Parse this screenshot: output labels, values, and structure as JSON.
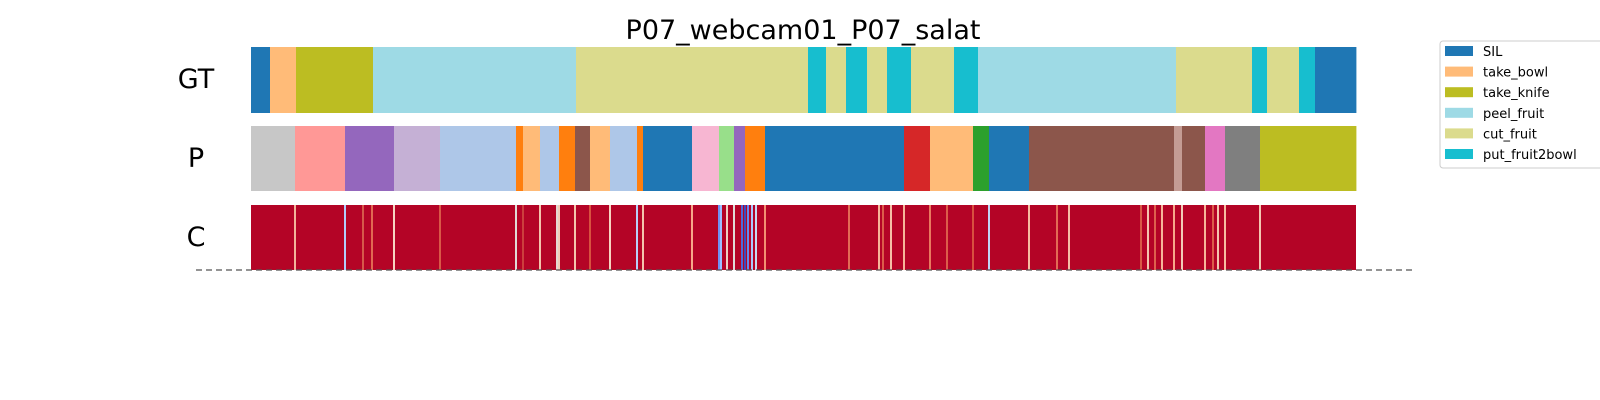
{
  "chart_data": {
    "type": "heatmap",
    "title": "P07_webcam01_P07_salat",
    "row_labels": [
      "GT",
      "P",
      "C"
    ],
    "x_range": [
      0,
      1105
    ],
    "legend": {
      "placement": "top-right",
      "entries": [
        {
          "label": "SIL",
          "color": "#1f77b4"
        },
        {
          "label": "take_bowl",
          "color": "#ffbb78"
        },
        {
          "label": "take_knife",
          "color": "#bcbd22"
        },
        {
          "label": "peel_fruit",
          "color": "#9edae5"
        },
        {
          "label": "cut_fruit",
          "color": "#dbdb8d"
        },
        {
          "label": "put_fruit2bowl",
          "color": "#17becf"
        }
      ]
    },
    "gt_segments": [
      {
        "start": 0,
        "end": 19,
        "color": "#1f77b4"
      },
      {
        "start": 19,
        "end": 45,
        "color": "#ffbb78"
      },
      {
        "start": 45,
        "end": 122,
        "color": "#bcbd22"
      },
      {
        "start": 122,
        "end": 325,
        "color": "#9edae5"
      },
      {
        "start": 325,
        "end": 557,
        "color": "#dbdb8d"
      },
      {
        "start": 557,
        "end": 575,
        "color": "#17becf"
      },
      {
        "start": 575,
        "end": 595,
        "color": "#dbdb8d"
      },
      {
        "start": 595,
        "end": 616,
        "color": "#17becf"
      },
      {
        "start": 616,
        "end": 636,
        "color": "#dbdb8d"
      },
      {
        "start": 636,
        "end": 660,
        "color": "#17becf"
      },
      {
        "start": 660,
        "end": 703,
        "color": "#dbdb8d"
      },
      {
        "start": 703,
        "end": 727,
        "color": "#17becf"
      },
      {
        "start": 727,
        "end": 925,
        "color": "#9edae5"
      },
      {
        "start": 925,
        "end": 1001,
        "color": "#dbdb8d"
      },
      {
        "start": 1001,
        "end": 1016,
        "color": "#17becf"
      },
      {
        "start": 1016,
        "end": 1048,
        "color": "#dbdb8d"
      },
      {
        "start": 1048,
        "end": 1064,
        "color": "#17becf"
      },
      {
        "start": 1064,
        "end": 1105,
        "color": "#1f77b4"
      }
    ],
    "p_segments": [
      {
        "start": 0,
        "end": 44,
        "color": "#c7c7c7"
      },
      {
        "start": 44,
        "end": 94,
        "color": "#ff9896"
      },
      {
        "start": 94,
        "end": 143,
        "color": "#9467bd"
      },
      {
        "start": 143,
        "end": 189,
        "color": "#c5b0d5"
      },
      {
        "start": 189,
        "end": 265,
        "color": "#aec7e8"
      },
      {
        "start": 265,
        "end": 272,
        "color": "#ff7f0e"
      },
      {
        "start": 272,
        "end": 289,
        "color": "#ffbb78"
      },
      {
        "start": 289,
        "end": 308,
        "color": "#aec7e8"
      },
      {
        "start": 308,
        "end": 324,
        "color": "#ff7f0e"
      },
      {
        "start": 324,
        "end": 339,
        "color": "#8c564b"
      },
      {
        "start": 339,
        "end": 359,
        "color": "#ffbb78"
      },
      {
        "start": 359,
        "end": 386,
        "color": "#aec7e8"
      },
      {
        "start": 386,
        "end": 392,
        "color": "#ff7f0e"
      },
      {
        "start": 392,
        "end": 441,
        "color": "#1f77b4"
      },
      {
        "start": 441,
        "end": 468,
        "color": "#f7b6d2"
      },
      {
        "start": 468,
        "end": 483,
        "color": "#98df8a"
      },
      {
        "start": 483,
        "end": 494,
        "color": "#9467bd"
      },
      {
        "start": 494,
        "end": 514,
        "color": "#ff7f0e"
      },
      {
        "start": 514,
        "end": 653,
        "color": "#1f77b4"
      },
      {
        "start": 653,
        "end": 679,
        "color": "#d62728"
      },
      {
        "start": 679,
        "end": 722,
        "color": "#ffbb78"
      },
      {
        "start": 722,
        "end": 738,
        "color": "#2ca02c"
      },
      {
        "start": 738,
        "end": 778,
        "color": "#1f77b4"
      },
      {
        "start": 778,
        "end": 923,
        "color": "#8c564b"
      },
      {
        "start": 923,
        "end": 931,
        "color": "#c49c94"
      },
      {
        "start": 931,
        "end": 954,
        "color": "#8c564b"
      },
      {
        "start": 954,
        "end": 974,
        "color": "#e377c2"
      },
      {
        "start": 974,
        "end": 1009,
        "color": "#7f7f7f"
      },
      {
        "start": 1009,
        "end": 1105,
        "color": "#bcbd22"
      }
    ],
    "c_base_color": "#b40426",
    "c_highlights": [
      {
        "x": 44,
        "color": "#f2b49a"
      },
      {
        "x": 94,
        "color": "#b2ccfb"
      },
      {
        "x": 112,
        "color": "#d6594a"
      },
      {
        "x": 121,
        "color": "#e26952"
      },
      {
        "x": 143,
        "color": "#f7d4c1"
      },
      {
        "x": 189,
        "color": "#d95847"
      },
      {
        "x": 265,
        "color": "#e0dbd7"
      },
      {
        "x": 272,
        "color": "#cc3f3d"
      },
      {
        "x": 289,
        "color": "#f4c5ad"
      },
      {
        "x": 306,
        "color": "#e4d9d2"
      },
      {
        "x": 308,
        "color": "#f2cbb7"
      },
      {
        "x": 324,
        "color": "#f4c5ad"
      },
      {
        "x": 339,
        "color": "#d8513f"
      },
      {
        "x": 359,
        "color": "#f7d4c1"
      },
      {
        "x": 386,
        "color": "#b9d0f9"
      },
      {
        "x": 392,
        "color": "#f4c5ad"
      },
      {
        "x": 441,
        "color": "#f7a889"
      },
      {
        "x": 468,
        "color": "#6f92f3"
      },
      {
        "x": 470,
        "color": "#9ebeff"
      },
      {
        "x": 476,
        "color": "#edd1c2"
      },
      {
        "x": 483,
        "color": "#e0dbd7"
      },
      {
        "x": 489,
        "color": "#b40426"
      },
      {
        "x": 491,
        "color": "#4f69d9"
      },
      {
        "x": 494,
        "color": "#3b4cc0"
      },
      {
        "x": 497,
        "color": "#6788ee"
      },
      {
        "x": 501,
        "color": "#aac7fd"
      },
      {
        "x": 505,
        "color": "#c9d7f0"
      },
      {
        "x": 514,
        "color": "#f29072"
      },
      {
        "x": 598,
        "color": "#e36c55"
      },
      {
        "x": 628,
        "color": "#f7b599"
      },
      {
        "x": 632,
        "color": "#dc5d4a"
      },
      {
        "x": 640,
        "color": "#f6bfa6"
      },
      {
        "x": 653,
        "color": "#f7b599"
      },
      {
        "x": 679,
        "color": "#e97a5f"
      },
      {
        "x": 696,
        "color": "#dc5d4a"
      },
      {
        "x": 722,
        "color": "#d8513f"
      },
      {
        "x": 738,
        "color": "#c0d4f5"
      },
      {
        "x": 778,
        "color": "#f7bca1"
      },
      {
        "x": 806,
        "color": "#e36c55"
      },
      {
        "x": 818,
        "color": "#f6bfa6"
      },
      {
        "x": 890,
        "color": "#d95847"
      },
      {
        "x": 897,
        "color": "#f4c5ad"
      },
      {
        "x": 904,
        "color": "#de614d"
      },
      {
        "x": 911,
        "color": "#f7b599"
      },
      {
        "x": 923,
        "color": "#f7a889"
      },
      {
        "x": 931,
        "color": "#f2cbb7"
      },
      {
        "x": 954,
        "color": "#f7b599"
      },
      {
        "x": 962,
        "color": "#dc5d4a"
      },
      {
        "x": 967,
        "color": "#f4c5ad"
      },
      {
        "x": 974,
        "color": "#f7bca1"
      },
      {
        "x": 1009,
        "color": "#f3c7b1"
      }
    ]
  }
}
